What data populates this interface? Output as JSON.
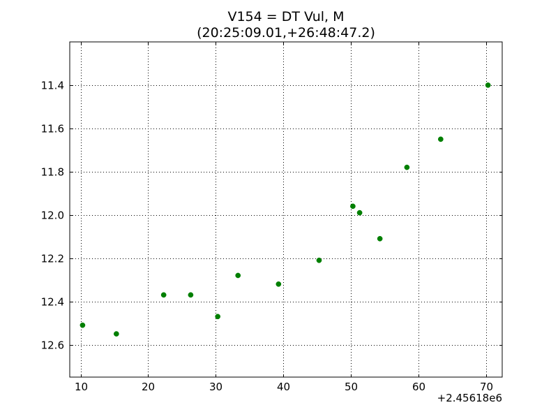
{
  "chart_data": {
    "type": "scatter",
    "title": "V154 = DT Vul, M",
    "subtitle": "(20:25:09.01,+26:48:47.2)",
    "xlabel": "",
    "ylabel": "",
    "x_offset_label": "+2.45618e6",
    "xlim": [
      8.4,
      72.4
    ],
    "ylim": [
      12.75,
      11.2
    ],
    "y_inverted": true,
    "grid": true,
    "marker_color": "#007f00",
    "x_ticks": [
      10,
      20,
      30,
      40,
      50,
      60,
      70
    ],
    "x_tick_labels": [
      "10",
      "20",
      "30",
      "40",
      "50",
      "60",
      "70"
    ],
    "y_ticks": [
      11.4,
      11.6,
      11.8,
      12.0,
      12.2,
      12.4,
      12.6
    ],
    "y_tick_labels": [
      "11.4",
      "11.6",
      "11.8",
      "12.0",
      "12.2",
      "12.4",
      "12.6"
    ],
    "series": [
      {
        "x": [
          10.3,
          15.3,
          22.3,
          26.3,
          30.3,
          33.3,
          39.3,
          45.3,
          50.3,
          51.3,
          54.3,
          58.3,
          63.3,
          70.3
        ],
        "y": [
          12.51,
          12.55,
          12.37,
          12.37,
          12.47,
          12.28,
          12.32,
          12.21,
          11.96,
          11.99,
          12.11,
          11.78,
          11.65,
          11.4
        ]
      }
    ]
  }
}
